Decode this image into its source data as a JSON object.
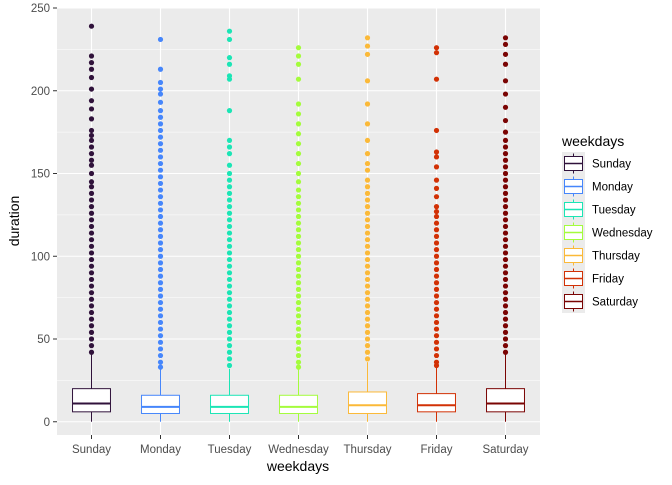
{
  "chart_data": {
    "type": "boxplot",
    "xlabel": "weekdays",
    "ylabel": "duration",
    "ylim": [
      -8,
      250
    ],
    "yticks": [
      0,
      50,
      100,
      150,
      200,
      250
    ],
    "grid": true,
    "legend": {
      "title": "weekdays",
      "position": "right"
    },
    "categories": [
      "Sunday",
      "Monday",
      "Tuesday",
      "Wednesday",
      "Thursday",
      "Friday",
      "Saturday"
    ],
    "series": [
      {
        "name": "Sunday",
        "color": "#30123b",
        "q1": 6,
        "median": 11,
        "q3": 20,
        "whisker_low": 0,
        "whisker_high": 41,
        "outliers": [
          239,
          221,
          217,
          213,
          208,
          201,
          194,
          189,
          183,
          176,
          173,
          170,
          166,
          162,
          158,
          155,
          150,
          145,
          142,
          138,
          134,
          130,
          126,
          122,
          118,
          114,
          110,
          106,
          102,
          98,
          94,
          90,
          86,
          82,
          78,
          74,
          70,
          66,
          62,
          58,
          54,
          50,
          46,
          42
        ]
      },
      {
        "name": "Monday",
        "color": "#4686fb",
        "q1": 5,
        "median": 9,
        "q3": 16,
        "whisker_low": 0,
        "whisker_high": 32,
        "outliers": [
          231,
          213,
          205,
          201,
          198,
          193,
          188,
          184,
          180,
          176,
          172,
          168,
          164,
          160,
          156,
          152,
          148,
          144,
          140,
          136,
          132,
          128,
          124,
          120,
          116,
          112,
          108,
          104,
          100,
          96,
          92,
          88,
          84,
          80,
          76,
          72,
          68,
          64,
          60,
          56,
          52,
          48,
          44,
          40,
          36,
          33
        ]
      },
      {
        "name": "Tuesday",
        "color": "#1be5b5",
        "q1": 5,
        "median": 9,
        "q3": 16,
        "whisker_low": 0,
        "whisker_high": 32,
        "outliers": [
          236,
          231,
          220,
          216,
          209,
          207,
          188,
          170,
          166,
          162,
          155,
          150,
          146,
          142,
          138,
          134,
          130,
          126,
          122,
          118,
          114,
          110,
          106,
          102,
          98,
          94,
          90,
          86,
          82,
          78,
          74,
          70,
          66,
          62,
          58,
          54,
          50,
          46,
          42,
          38,
          34
        ]
      },
      {
        "name": "Wednesday",
        "color": "#a4fc3c",
        "q1": 5,
        "median": 9,
        "q3": 16,
        "whisker_low": 0,
        "whisker_high": 32,
        "outliers": [
          226,
          221,
          216,
          207,
          192,
          186,
          180,
          174,
          168,
          162,
          156,
          150,
          145,
          140,
          136,
          132,
          128,
          124,
          120,
          116,
          112,
          108,
          104,
          100,
          96,
          92,
          88,
          84,
          80,
          76,
          72,
          68,
          64,
          60,
          56,
          52,
          48,
          44,
          40,
          36,
          33
        ]
      },
      {
        "name": "Thursday",
        "color": "#fbb938",
        "q1": 5,
        "median": 10,
        "q3": 18,
        "whisker_low": 0,
        "whisker_high": 36,
        "outliers": [
          232,
          227,
          222,
          206,
          192,
          180,
          170,
          162,
          156,
          152,
          146,
          142,
          138,
          134,
          130,
          126,
          122,
          118,
          114,
          110,
          106,
          102,
          98,
          94,
          90,
          86,
          82,
          78,
          74,
          70,
          66,
          62,
          58,
          54,
          50,
          46,
          42,
          38
        ]
      },
      {
        "name": "Friday",
        "color": "#d23105",
        "q1": 6,
        "median": 10,
        "q3": 17,
        "whisker_low": 0,
        "whisker_high": 33,
        "outliers": [
          226,
          223,
          207,
          176,
          163,
          160,
          154,
          146,
          141,
          136,
          130,
          127,
          124,
          120,
          116,
          112,
          108,
          104,
          100,
          96,
          92,
          88,
          84,
          80,
          76,
          72,
          68,
          64,
          60,
          56,
          52,
          48,
          44,
          40,
          36,
          34
        ]
      },
      {
        "name": "Saturday",
        "color": "#7a0403",
        "q1": 6,
        "median": 11,
        "q3": 20,
        "whisker_low": 0,
        "whisker_high": 41,
        "outliers": [
          232,
          228,
          222,
          216,
          206,
          198,
          190,
          182,
          175,
          170,
          166,
          162,
          158,
          154,
          150,
          146,
          142,
          138,
          134,
          130,
          126,
          122,
          118,
          114,
          110,
          106,
          102,
          98,
          94,
          90,
          86,
          82,
          78,
          74,
          70,
          66,
          62,
          58,
          54,
          50,
          46,
          42
        ]
      }
    ]
  }
}
